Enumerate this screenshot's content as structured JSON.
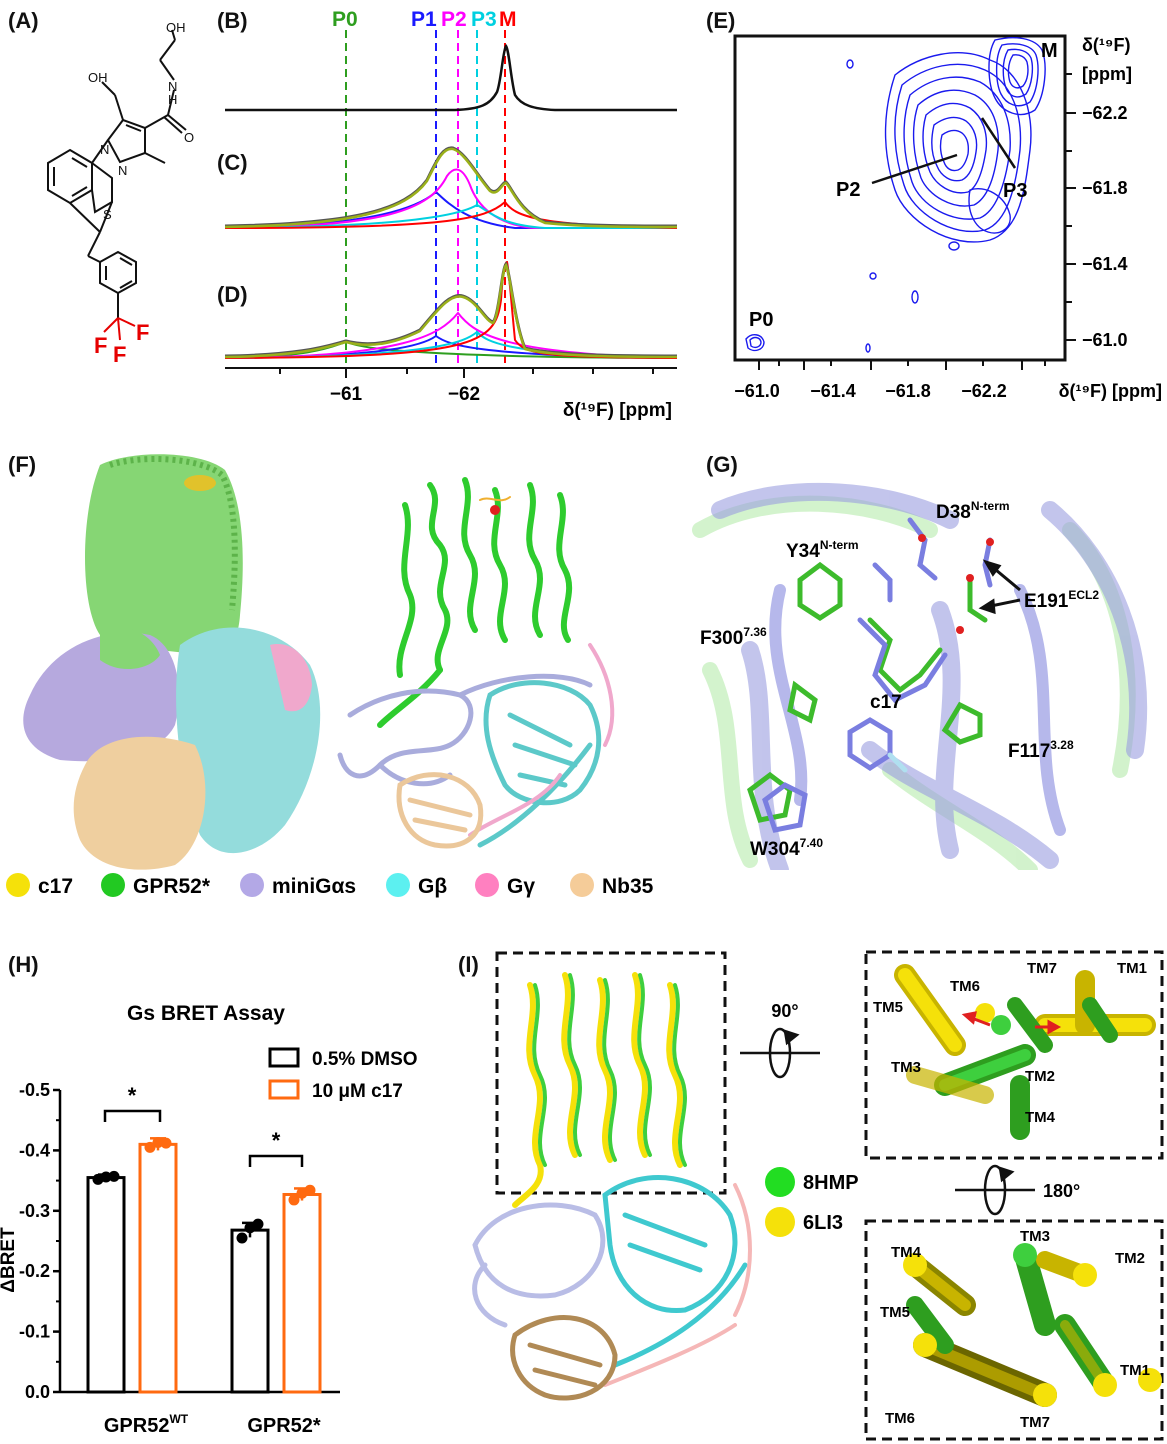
{
  "panel_labels": {
    "a": "(A)",
    "b": "(B)",
    "c": "(C)",
    "d": "(D)",
    "e": "(E)",
    "f": "(F)",
    "g": "(G)",
    "h": "(H)",
    "i": "(I)"
  },
  "molecule": {
    "atoms": {
      "oh1": "OH",
      "oh2": "OH",
      "nh": "N",
      "h": "H",
      "o": "O",
      "n1": "N",
      "n2": "N",
      "s": "S",
      "f1": "F",
      "f2": "F",
      "f3": "F"
    }
  },
  "nmr": {
    "peaks": {
      "p0": "P0",
      "p1": "P1",
      "p2": "P2",
      "p3": "P3",
      "m": "M"
    },
    "peak_colors": {
      "p0": "#2e9e1f",
      "p1": "#1a1aff",
      "p2": "#ff00ff",
      "p3": "#00d0e0",
      "m": "#ff0000"
    },
    "xticks": [
      "−61",
      "−62"
    ],
    "xlabel": "δ(¹⁹F) [ppm]"
  },
  "hsqc": {
    "labels": {
      "m": "M",
      "p2": "P2",
      "p3": "P3",
      "p0": "P0"
    },
    "xticks": [
      "−61.0",
      "−61.4",
      "−61.8",
      "−62.2"
    ],
    "yticks": [
      "−62.2",
      "−61.8",
      "−61.4",
      "−61.0"
    ],
    "xlabel": "δ(¹⁹F) [ppm]",
    "ylabel": "δ(¹⁹F)",
    "yunit": "[ppm]"
  },
  "legend_f": [
    {
      "label": "c17",
      "color": "#f5e10a"
    },
    {
      "label": "GPR52*",
      "color": "#22c922"
    },
    {
      "label": "miniGαs",
      "color": "#b3a8e6"
    },
    {
      "label": "Gβ",
      "color": "#5cf0f0"
    },
    {
      "label": "Gγ",
      "color": "#ff80c0"
    },
    {
      "label": "Nb35",
      "color": "#f5cc99"
    }
  ],
  "residues_g": {
    "d38": "D38",
    "d38_sup": "N-term",
    "y34": "Y34",
    "y34_sup": "N-term",
    "e191": "E191",
    "e191_sup": "ECL2",
    "f300": "F300",
    "f300_sup": "7.36",
    "c17": "c17",
    "f117": "F117",
    "f117_sup": "3.28",
    "w304": "W304",
    "w304_sup": "7.40"
  },
  "chart_data": {
    "type": "bar",
    "title": "Gs BRET Assay",
    "ylabel": "ΔBRET",
    "categories": [
      "GPR52WT",
      "GPR52*"
    ],
    "category_main": [
      "GPR52",
      "GPR52*"
    ],
    "category_sup": [
      "WT",
      ""
    ],
    "series": [
      {
        "name": "0.5% DMSO",
        "color": "#000000",
        "values": [
          -0.355,
          -0.268
        ]
      },
      {
        "name": "10 μM c17",
        "color": "#ff6a10",
        "values": [
          -0.41,
          -0.327
        ]
      }
    ],
    "errors": [
      [
        0.005,
        0.012
      ],
      [
        0.01,
        0.01
      ]
    ],
    "points": [
      [
        [
          -0.352,
          -0.356,
          -0.357
        ],
        [
          -0.255,
          -0.272,
          -0.278
        ]
      ],
      [
        [
          -0.405,
          -0.413,
          -0.412
        ],
        [
          -0.318,
          -0.329,
          -0.334
        ]
      ]
    ],
    "ylim": [
      0.0,
      -0.5
    ],
    "yticks": [
      "0.0",
      "-0.1",
      "-0.2",
      "-0.3",
      "-0.4",
      "-0.5"
    ],
    "significance": [
      "*",
      "*"
    ],
    "grid": false
  },
  "panel_i": {
    "rot1": "90°",
    "rot2": "180°",
    "legend": [
      {
        "label": "8HMP",
        "color": "#22dd22"
      },
      {
        "label": "6LI3",
        "color": "#f5e10a"
      }
    ],
    "tm_top": [
      "TM1",
      "TM2",
      "TM3",
      "TM4",
      "TM5",
      "TM6",
      "TM7"
    ],
    "tm_bottom": [
      "TM1",
      "TM2",
      "TM3",
      "TM4",
      "TM5",
      "TM6",
      "TM7"
    ]
  }
}
